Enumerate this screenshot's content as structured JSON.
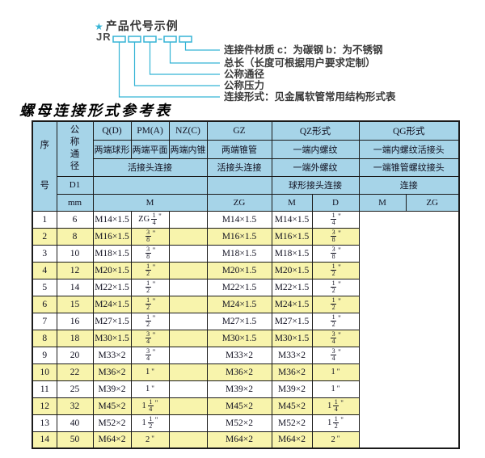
{
  "colors": {
    "accent_cyan": "#35b4d5",
    "header_blue": "#a6d4e8",
    "row_yellow": "#f8f4ac",
    "border_dark": "#1a1a1a"
  },
  "diagram": {
    "star": "★",
    "title": "产品代号示例",
    "code_prefix": "JR",
    "annotations": [
      "连接件材质  c：为碳钢  b：为不锈钢",
      "总长（长度可根据用户要求定制）",
      "公称通径",
      "公称压力",
      "连接形式：见金属软管常用结构形式表"
    ]
  },
  "table": {
    "title": "螺母连接形式参考表",
    "header": {
      "seq": "序号",
      "nominal": "公称通径",
      "d1": "D1",
      "mm": "mm",
      "codes": {
        "q": "Q(D)",
        "pm": "PM(A)",
        "nz": "NZ(C)",
        "gz": "GZ",
        "qz": "QZ形式",
        "qg": "QG形式"
      },
      "ends": {
        "q": "两端球形",
        "pm": "两端平面",
        "nz": "两端内锥",
        "gz": "两端锥管",
        "qz": "一端内螺纹",
        "qg": "一端内螺纹活接头"
      },
      "row3": {
        "union": "活接头连接",
        "gz": "活接头连接",
        "qz": "一端外螺纹",
        "qg": "一端锥管螺纹接头"
      },
      "row4": {
        "qz": "球形接头连接",
        "qg": "连接"
      },
      "units": {
        "m": "M",
        "gz": "ZG",
        "qz_m": "M",
        "qz_d": "D",
        "qg_m": "M",
        "qg_zg": "ZG"
      }
    },
    "rows": [
      [
        "1",
        "6",
        "M14×1.5",
        "ZG 1/4\"",
        "",
        "M14×1.5",
        "M14×1.5",
        "1/4\""
      ],
      [
        "2",
        "8",
        "M16×1.5",
        "3/8\"",
        "",
        "M16×1.5",
        "M16×1.5",
        "3/8\""
      ],
      [
        "3",
        "10",
        "M18×1.5",
        "3/8\"",
        "",
        "M18×1.5",
        "M18×1.5",
        "3/8\""
      ],
      [
        "4",
        "12",
        "M20×1.5",
        "1/2\"",
        "",
        "M20×1.5",
        "M20×1.5",
        "1/2\""
      ],
      [
        "5",
        "14",
        "M22×1.5",
        "1/2\"",
        "",
        "M22×1.5",
        "M22×1.5",
        "1/2\""
      ],
      [
        "6",
        "15",
        "M24×1.5",
        "1/2\"",
        "",
        "M24×1.5",
        "M24×1.5",
        "1/2\""
      ],
      [
        "7",
        "16",
        "M27×1.5",
        "1/2\"",
        "",
        "M27×1.5",
        "M27×1.5",
        "1/2\""
      ],
      [
        "8",
        "18",
        "M30×1.5",
        "3/4\"",
        "",
        "M30×1.5",
        "M30×1.5",
        "3/4\""
      ],
      [
        "9",
        "20",
        "M33×2",
        "3/4\"",
        "",
        "M33×2",
        "M33×2",
        "3/4\""
      ],
      [
        "10",
        "22",
        "M36×2",
        "1\"",
        "",
        "M36×2",
        "M36×2",
        "1\""
      ],
      [
        "11",
        "25",
        "M39×2",
        "1\"",
        "",
        "M39×2",
        "M39×2",
        "1\""
      ],
      [
        "12",
        "32",
        "M45×2",
        "1 1/4\"",
        "",
        "M45×2",
        "M45×2",
        "1 1/4\""
      ],
      [
        "13",
        "40",
        "M52×2",
        "1 1/2\"",
        "",
        "M52×2",
        "M52×2",
        "1 1/2\""
      ],
      [
        "14",
        "50",
        "M64×2",
        "2\"",
        "",
        "M64×2",
        "M64×2",
        "2\""
      ]
    ]
  }
}
